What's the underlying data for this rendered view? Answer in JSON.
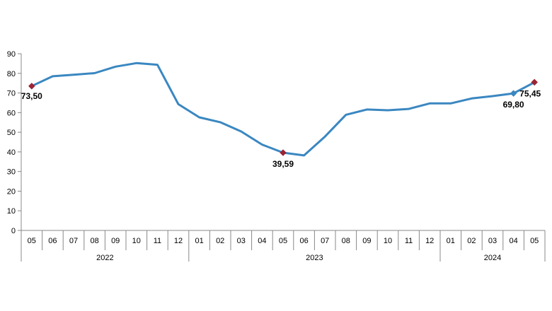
{
  "chart_data": {
    "type": "line",
    "title": "",
    "xlabel": "",
    "ylabel": "",
    "ylim": [
      0,
      90
    ],
    "yticks": [
      "0",
      "10",
      "20",
      "30",
      "40",
      "50",
      "60",
      "70",
      "80",
      "90"
    ],
    "grid": false,
    "categories": [
      "05",
      "06",
      "07",
      "08",
      "09",
      "10",
      "11",
      "12",
      "01",
      "02",
      "03",
      "04",
      "05",
      "06",
      "07",
      "08",
      "09",
      "10",
      "11",
      "12",
      "01",
      "02",
      "03",
      "04",
      "05"
    ],
    "year_groups": [
      {
        "label": "2022",
        "count": 8
      },
      {
        "label": "2023",
        "count": 12
      },
      {
        "label": "2024",
        "count": 5
      }
    ],
    "series": [
      {
        "color": "#3a87c1",
        "values": [
          73.5,
          78.5,
          79.3,
          80.1,
          83.4,
          85.2,
          84.4,
          64.3,
          57.6,
          55.1,
          50.4,
          43.7,
          39.59,
          38.2,
          47.8,
          58.9,
          61.6,
          61.2,
          61.9,
          64.7,
          64.7,
          67.2,
          68.4,
          69.8,
          75.45
        ]
      }
    ],
    "highlighted_points": [
      {
        "index": 0,
        "label": "73,50",
        "marker_color": "#9b2335"
      },
      {
        "index": 12,
        "label": "39,59",
        "marker_color": "#9b2335"
      },
      {
        "index": 23,
        "label": "69,80",
        "marker_color": "#3a87c1"
      },
      {
        "index": 24,
        "label": "75,45",
        "marker_color": "#9b2335"
      }
    ]
  }
}
